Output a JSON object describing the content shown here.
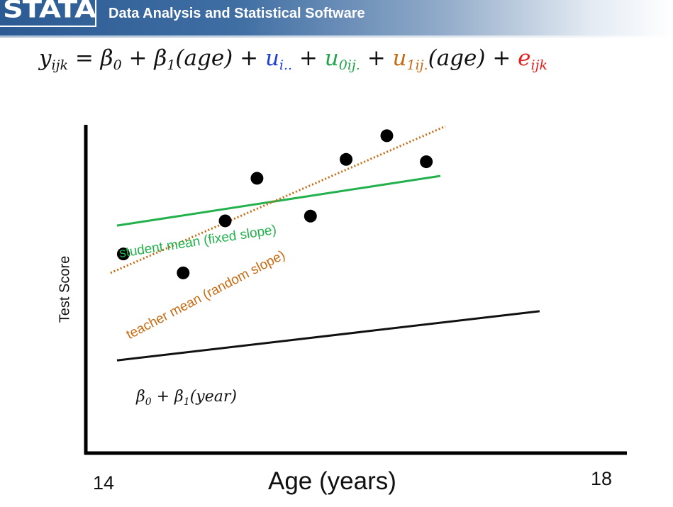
{
  "header": {
    "logo_text": "STATA",
    "tagline": "Data Analysis and Statistical Software"
  },
  "equation": {
    "lhs": "y",
    "lhs_sub": "ijk",
    "eq": " = β",
    "b0_sub": "0",
    "plus_b1": " + β",
    "b1_sub": "1",
    "age1": "(age) + ",
    "u_student": "u",
    "u_student_sub": "i..",
    "plus2": " + ",
    "u_teacher0": "u",
    "u_teacher0_sub": "0ij.",
    "plus3": " + ",
    "u_teacher1": "u",
    "u_teacher1_sub": "1ij.",
    "age2": "(age) + ",
    "e": "e",
    "e_sub": "ijk"
  },
  "chart_data": {
    "type": "scatter",
    "xlabel": "Age (years)",
    "ylabel": "Test Score",
    "x_tick_labels": [
      "14",
      "18"
    ],
    "xlim": [
      14,
      18
    ],
    "points": [
      {
        "x": 14.15,
        "y": 5.35
      },
      {
        "x": 14.62,
        "y": 4.95
      },
      {
        "x": 14.95,
        "y": 6.05
      },
      {
        "x": 15.2,
        "y": 6.95
      },
      {
        "x": 15.62,
        "y": 6.15
      },
      {
        "x": 15.9,
        "y": 7.35
      },
      {
        "x": 16.22,
        "y": 7.85
      },
      {
        "x": 16.53,
        "y": 7.3
      }
    ],
    "lines": [
      {
        "label": "student mean (fixed slope)",
        "color": "#22b14c",
        "style": "solid",
        "x": [
          14.1,
          16.64
        ],
        "y": [
          5.95,
          7.0
        ]
      },
      {
        "label": "teacher mean (random slope)",
        "color": "#c76a12",
        "style": "dotted",
        "x": [
          14.05,
          16.68
        ],
        "y": [
          4.95,
          8.05
        ]
      },
      {
        "label": "β0 + β1(year)",
        "color": "#111111",
        "style": "solid",
        "x": [
          14.1,
          17.42
        ],
        "y": [
          3.1,
          4.14
        ]
      }
    ]
  },
  "labels": {
    "student": "student mean (fixed slope)",
    "teacher": "teacher mean (random slope)",
    "base_b": "β",
    "base_sub0": "0",
    "base_mid": " + β",
    "base_sub1": "1",
    "base_year": "(year)"
  }
}
